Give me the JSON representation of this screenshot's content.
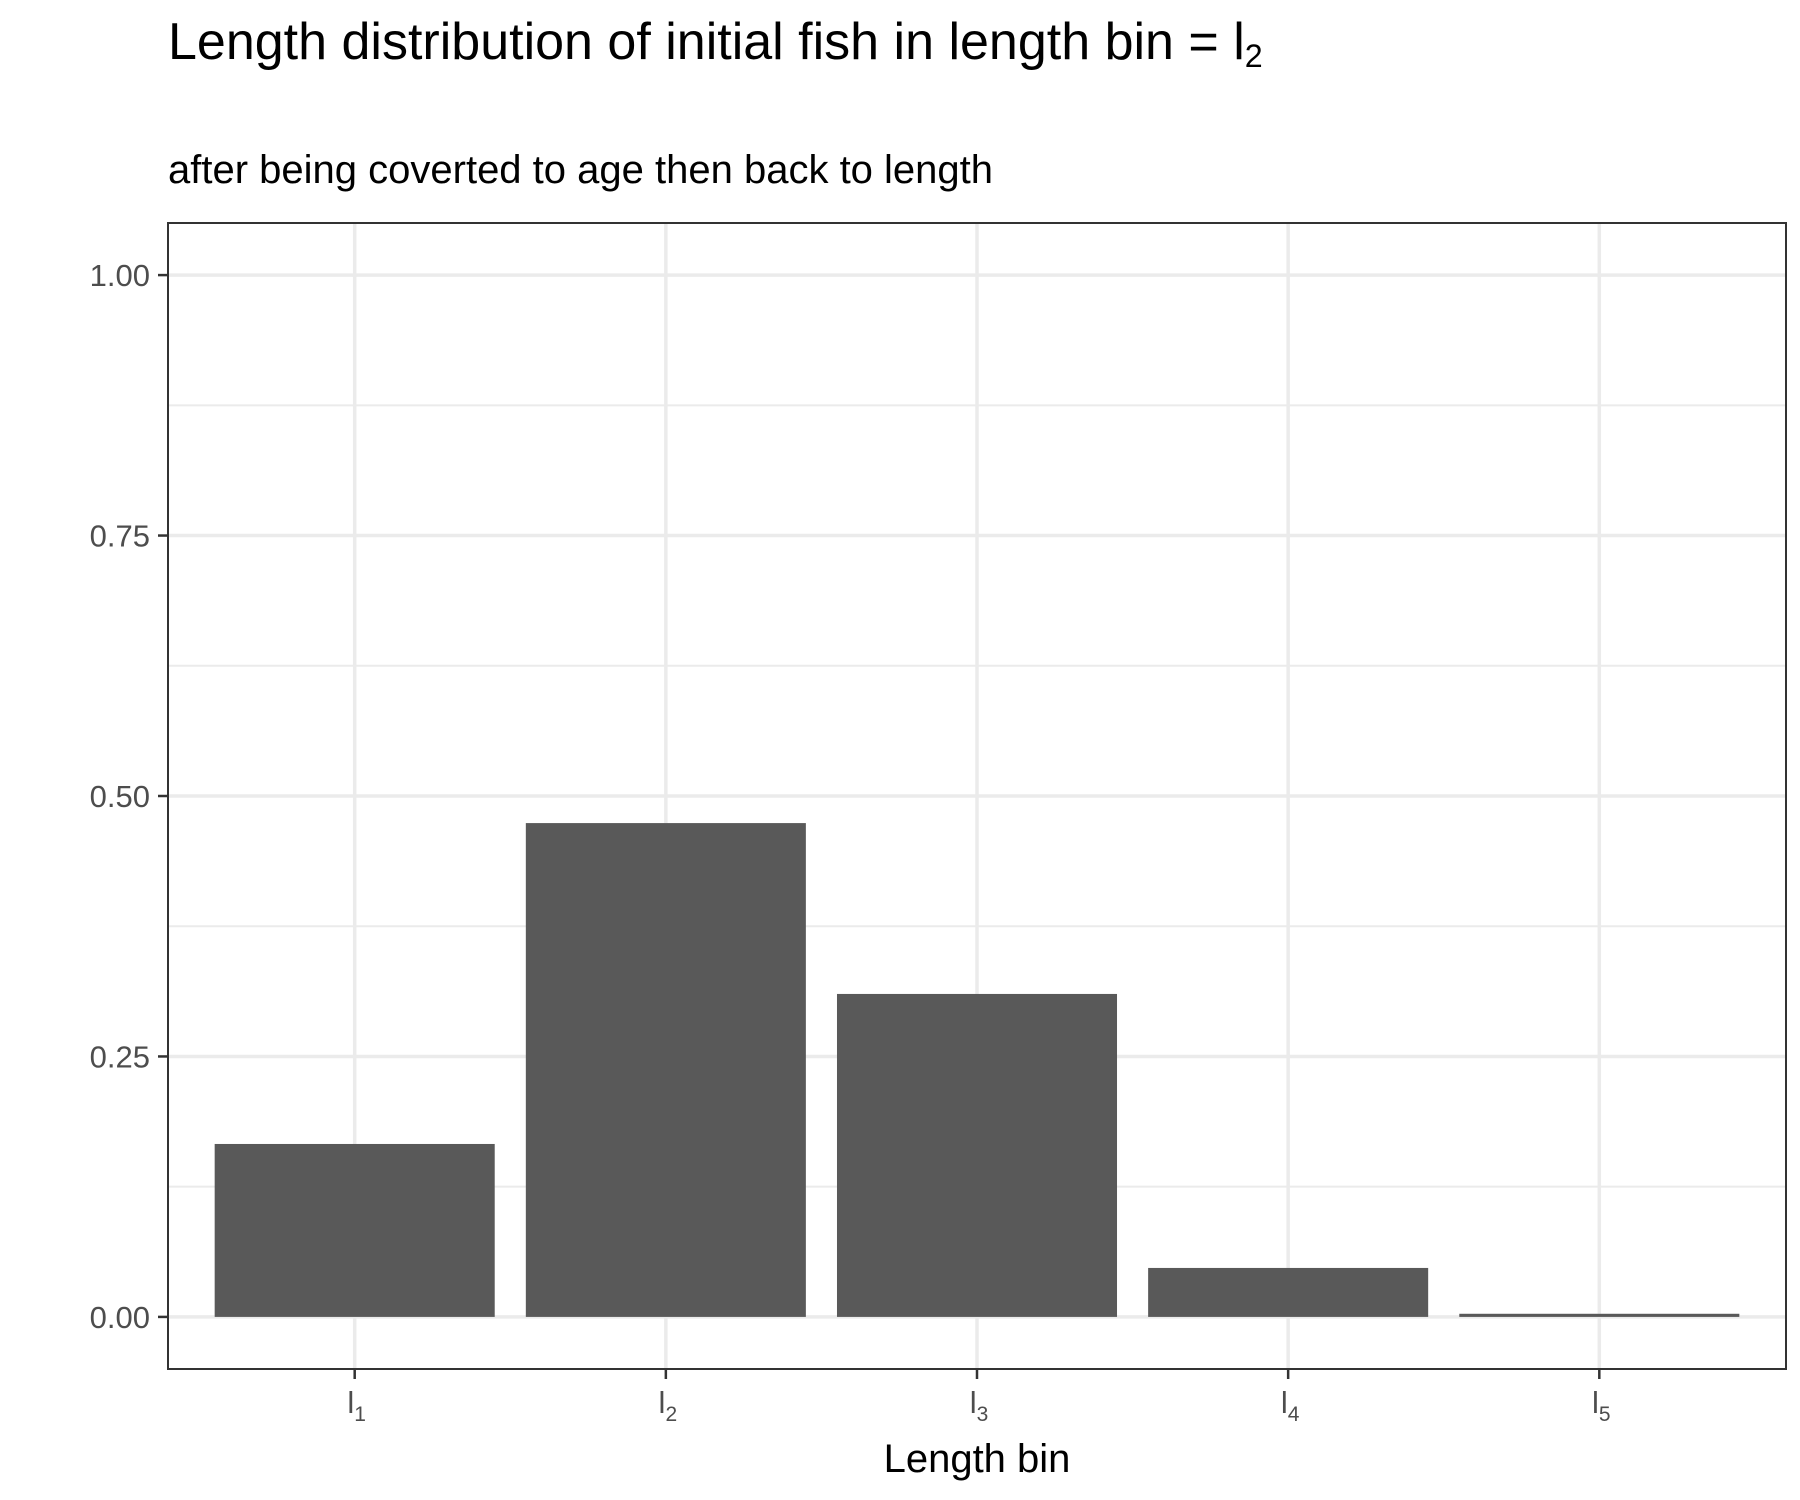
{
  "chart_data": {
    "type": "bar",
    "title": {
      "main": "Length distribution of initial fish in length bin = l",
      "sub": "2"
    },
    "subtitle": "after being coverted to age then back to length",
    "xlabel": "Length bin",
    "ylabel": "",
    "categories": [
      {
        "main": "l",
        "sub": "1"
      },
      {
        "main": "l",
        "sub": "2"
      },
      {
        "main": "l",
        "sub": "3"
      },
      {
        "main": "l",
        "sub": "4"
      },
      {
        "main": "l",
        "sub": "5"
      }
    ],
    "values": [
      0.166,
      0.474,
      0.31,
      0.047,
      0.003
    ],
    "yticks": [
      "0.00",
      "0.25",
      "0.50",
      "0.75",
      "1.00"
    ],
    "ylim": [
      -0.05,
      1.05
    ],
    "grid": true,
    "bar_color": "#595959",
    "grid_color": "#ebebeb",
    "panel_border_color": "#333333"
  }
}
